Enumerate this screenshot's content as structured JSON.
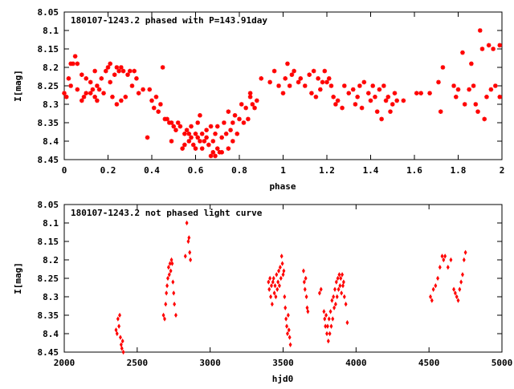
{
  "chart_data": [
    {
      "type": "scatter",
      "title": "180107-1243.2 phased with P=143.91day",
      "xlabel": "phase",
      "ylabel": "I[mag]",
      "xlim": [
        0,
        2
      ],
      "ylim": [
        8.05,
        8.45
      ],
      "y_inverted": true,
      "marker": "star",
      "color": "#ff0000",
      "grid": false,
      "xticks": [
        "0",
        "0.2",
        "0.4",
        "0.6",
        "0.8",
        "1",
        "1.2",
        "1.4",
        "1.6",
        "1.8",
        "2"
      ],
      "yticks": [
        "8.05",
        "8.1",
        "8.15",
        "8.2",
        "8.25",
        "8.3",
        "8.35",
        "8.4",
        "8.45"
      ],
      "points": [
        [
          0.0,
          8.27
        ],
        [
          0.01,
          8.28
        ],
        [
          0.02,
          8.23
        ],
        [
          0.03,
          8.19
        ],
        [
          0.03,
          8.25
        ],
        [
          0.04,
          8.19
        ],
        [
          0.05,
          8.17
        ],
        [
          0.06,
          8.19
        ],
        [
          0.06,
          8.26
        ],
        [
          0.08,
          8.22
        ],
        [
          0.08,
          8.29
        ],
        [
          0.09,
          8.28
        ],
        [
          0.1,
          8.27
        ],
        [
          0.1,
          8.23
        ],
        [
          0.12,
          8.24
        ],
        [
          0.12,
          8.27
        ],
        [
          0.13,
          8.26
        ],
        [
          0.14,
          8.28
        ],
        [
          0.14,
          8.21
        ],
        [
          0.15,
          8.25
        ],
        [
          0.15,
          8.29
        ],
        [
          0.16,
          8.26
        ],
        [
          0.17,
          8.23
        ],
        [
          0.18,
          8.27
        ],
        [
          0.19,
          8.21
        ],
        [
          0.2,
          8.2
        ],
        [
          0.21,
          8.24
        ],
        [
          0.21,
          8.19
        ],
        [
          0.22,
          8.28
        ],
        [
          0.23,
          8.22
        ],
        [
          0.24,
          8.2
        ],
        [
          0.24,
          8.3
        ],
        [
          0.25,
          8.21
        ],
        [
          0.26,
          8.2
        ],
        [
          0.26,
          8.29
        ],
        [
          0.27,
          8.21
        ],
        [
          0.28,
          8.28
        ],
        [
          0.29,
          8.22
        ],
        [
          0.3,
          8.21
        ],
        [
          0.31,
          8.25
        ],
        [
          0.32,
          8.21
        ],
        [
          0.33,
          8.23
        ],
        [
          0.34,
          8.27
        ],
        [
          0.36,
          8.26
        ],
        [
          0.38,
          8.39
        ],
        [
          0.39,
          8.26
        ],
        [
          0.4,
          8.29
        ],
        [
          0.41,
          8.31
        ],
        [
          0.42,
          8.28
        ],
        [
          0.43,
          8.32
        ],
        [
          0.44,
          8.3
        ],
        [
          0.45,
          8.2
        ],
        [
          0.46,
          8.34
        ],
        [
          0.47,
          8.34
        ],
        [
          0.48,
          8.35
        ],
        [
          0.49,
          8.35
        ],
        [
          0.49,
          8.4
        ],
        [
          0.5,
          8.36
        ],
        [
          0.51,
          8.37
        ],
        [
          0.52,
          8.35
        ],
        [
          0.53,
          8.36
        ],
        [
          0.54,
          8.42
        ],
        [
          0.55,
          8.38
        ],
        [
          0.55,
          8.41
        ],
        [
          0.56,
          8.37
        ],
        [
          0.57,
          8.38
        ],
        [
          0.57,
          8.4
        ],
        [
          0.58,
          8.39
        ],
        [
          0.58,
          8.36
        ],
        [
          0.59,
          8.41
        ],
        [
          0.6,
          8.38
        ],
        [
          0.6,
          8.42
        ],
        [
          0.61,
          8.39
        ],
        [
          0.61,
          8.35
        ],
        [
          0.62,
          8.4
        ],
        [
          0.62,
          8.33
        ],
        [
          0.63,
          8.42
        ],
        [
          0.63,
          8.38
        ],
        [
          0.64,
          8.4
        ],
        [
          0.65,
          8.39
        ],
        [
          0.65,
          8.37
        ],
        [
          0.66,
          8.41
        ],
        [
          0.67,
          8.36
        ],
        [
          0.67,
          8.44
        ],
        [
          0.68,
          8.43
        ],
        [
          0.68,
          8.4
        ],
        [
          0.69,
          8.44
        ],
        [
          0.69,
          8.38
        ],
        [
          0.7,
          8.42
        ],
        [
          0.7,
          8.36
        ],
        [
          0.71,
          8.43
        ],
        [
          0.72,
          8.39
        ],
        [
          0.72,
          8.43
        ],
        [
          0.73,
          8.35
        ],
        [
          0.74,
          8.38
        ],
        [
          0.75,
          8.42
        ],
        [
          0.75,
          8.32
        ],
        [
          0.76,
          8.37
        ],
        [
          0.77,
          8.35
        ],
        [
          0.77,
          8.4
        ],
        [
          0.78,
          8.33
        ],
        [
          0.79,
          8.38
        ],
        [
          0.8,
          8.34
        ],
        [
          0.81,
          8.3
        ],
        [
          0.82,
          8.35
        ],
        [
          0.83,
          8.31
        ],
        [
          0.84,
          8.34
        ],
        [
          0.85,
          8.28
        ],
        [
          0.85,
          8.27
        ],
        [
          0.86,
          8.3
        ],
        [
          0.87,
          8.31
        ],
        [
          0.88,
          8.29
        ],
        [
          0.9,
          8.23
        ],
        [
          0.94,
          8.24
        ],
        [
          0.96,
          8.21
        ],
        [
          0.98,
          8.25
        ],
        [
          1.0,
          8.27
        ],
        [
          1.01,
          8.23
        ],
        [
          1.02,
          8.19
        ],
        [
          1.03,
          8.25
        ],
        [
          1.04,
          8.22
        ],
        [
          1.05,
          8.21
        ],
        [
          1.07,
          8.24
        ],
        [
          1.08,
          8.23
        ],
        [
          1.1,
          8.25
        ],
        [
          1.12,
          8.22
        ],
        [
          1.13,
          8.27
        ],
        [
          1.14,
          8.21
        ],
        [
          1.15,
          8.28
        ],
        [
          1.16,
          8.23
        ],
        [
          1.17,
          8.26
        ],
        [
          1.18,
          8.24
        ],
        [
          1.19,
          8.21
        ],
        [
          1.2,
          8.24
        ],
        [
          1.21,
          8.23
        ],
        [
          1.22,
          8.25
        ],
        [
          1.23,
          8.28
        ],
        [
          1.24,
          8.3
        ],
        [
          1.25,
          8.29
        ],
        [
          1.27,
          8.31
        ],
        [
          1.28,
          8.25
        ],
        [
          1.3,
          8.27
        ],
        [
          1.32,
          8.26
        ],
        [
          1.33,
          8.3
        ],
        [
          1.34,
          8.28
        ],
        [
          1.35,
          8.25
        ],
        [
          1.36,
          8.31
        ],
        [
          1.37,
          8.24
        ],
        [
          1.39,
          8.27
        ],
        [
          1.4,
          8.29
        ],
        [
          1.41,
          8.25
        ],
        [
          1.42,
          8.28
        ],
        [
          1.43,
          8.32
        ],
        [
          1.44,
          8.26
        ],
        [
          1.45,
          8.34
        ],
        [
          1.46,
          8.25
        ],
        [
          1.47,
          8.29
        ],
        [
          1.48,
          8.28
        ],
        [
          1.49,
          8.32
        ],
        [
          1.5,
          8.3
        ],
        [
          1.51,
          8.27
        ],
        [
          1.52,
          8.29
        ],
        [
          1.55,
          8.29
        ],
        [
          1.61,
          8.27
        ],
        [
          1.63,
          8.27
        ],
        [
          1.67,
          8.27
        ],
        [
          1.71,
          8.24
        ],
        [
          1.72,
          8.32
        ],
        [
          1.73,
          8.2
        ],
        [
          1.78,
          8.25
        ],
        [
          1.79,
          8.28
        ],
        [
          1.8,
          8.26
        ],
        [
          1.82,
          8.16
        ],
        [
          1.83,
          8.3
        ],
        [
          1.85,
          8.26
        ],
        [
          1.86,
          8.19
        ],
        [
          1.87,
          8.25
        ],
        [
          1.88,
          8.3
        ],
        [
          1.89,
          8.32
        ],
        [
          1.9,
          8.1
        ],
        [
          1.91,
          8.15
        ],
        [
          1.92,
          8.34
        ],
        [
          1.93,
          8.28
        ],
        [
          1.94,
          8.14
        ],
        [
          1.95,
          8.26
        ],
        [
          1.96,
          8.15
        ],
        [
          1.97,
          8.25
        ],
        [
          1.99,
          8.14
        ],
        [
          1.99,
          8.28
        ]
      ]
    },
    {
      "type": "scatter",
      "title": "180107-1243.2 not phased light curve",
      "xlabel": "hjd0",
      "ylabel": "I[mag]",
      "xlim": [
        2000,
        5000
      ],
      "ylim": [
        8.05,
        8.45
      ],
      "y_inverted": true,
      "marker": "diamond",
      "color": "#ff0000",
      "grid": false,
      "xticks": [
        "2000",
        "2500",
        "3000",
        "3500",
        "4000",
        "4500",
        "5000"
      ],
      "yticks": [
        "8.05",
        "8.1",
        "8.15",
        "8.2",
        "8.25",
        "8.3",
        "8.35",
        "8.4",
        "8.45"
      ],
      "points": [
        [
          2355,
          8.39
        ],
        [
          2362,
          8.4
        ],
        [
          2368,
          8.36
        ],
        [
          2375,
          8.38
        ],
        [
          2380,
          8.35
        ],
        [
          2385,
          8.41
        ],
        [
          2390,
          8.43
        ],
        [
          2395,
          8.44
        ],
        [
          2400,
          8.42
        ],
        [
          2405,
          8.45
        ],
        [
          2680,
          8.35
        ],
        [
          2688,
          8.36
        ],
        [
          2695,
          8.32
        ],
        [
          2700,
          8.29
        ],
        [
          2705,
          8.27
        ],
        [
          2710,
          8.25
        ],
        [
          2715,
          8.22
        ],
        [
          2720,
          8.24
        ],
        [
          2725,
          8.21
        ],
        [
          2730,
          8.23
        ],
        [
          2735,
          8.2
        ],
        [
          2740,
          8.21
        ],
        [
          2745,
          8.26
        ],
        [
          2750,
          8.29
        ],
        [
          2755,
          8.32
        ],
        [
          2765,
          8.35
        ],
        [
          2830,
          8.19
        ],
        [
          2840,
          8.1
        ],
        [
          2850,
          8.15
        ],
        [
          2855,
          8.14
        ],
        [
          2860,
          8.18
        ],
        [
          2865,
          8.2
        ],
        [
          3400,
          8.26
        ],
        [
          3405,
          8.28
        ],
        [
          3410,
          8.25
        ],
        [
          3415,
          8.3
        ],
        [
          3420,
          8.27
        ],
        [
          3425,
          8.32
        ],
        [
          3430,
          8.26
        ],
        [
          3435,
          8.25
        ],
        [
          3440,
          8.29
        ],
        [
          3445,
          8.27
        ],
        [
          3450,
          8.3
        ],
        [
          3455,
          8.24
        ],
        [
          3460,
          8.28
        ],
        [
          3465,
          8.26
        ],
        [
          3470,
          8.23
        ],
        [
          3475,
          8.27
        ],
        [
          3480,
          8.22
        ],
        [
          3485,
          8.25
        ],
        [
          3490,
          8.19
        ],
        [
          3495,
          8.21
        ],
        [
          3500,
          8.24
        ],
        [
          3505,
          8.23
        ],
        [
          3510,
          8.3
        ],
        [
          3515,
          8.33
        ],
        [
          3520,
          8.36
        ],
        [
          3525,
          8.38
        ],
        [
          3530,
          8.4
        ],
        [
          3535,
          8.35
        ],
        [
          3540,
          8.39
        ],
        [
          3545,
          8.41
        ],
        [
          3550,
          8.43
        ],
        [
          3640,
          8.23
        ],
        [
          3645,
          8.26
        ],
        [
          3650,
          8.28
        ],
        [
          3655,
          8.25
        ],
        [
          3660,
          8.3
        ],
        [
          3665,
          8.33
        ],
        [
          3670,
          8.34
        ],
        [
          3750,
          8.29
        ],
        [
          3760,
          8.28
        ],
        [
          3780,
          8.34
        ],
        [
          3785,
          8.36
        ],
        [
          3790,
          8.38
        ],
        [
          3795,
          8.35
        ],
        [
          3800,
          8.4
        ],
        [
          3805,
          8.38
        ],
        [
          3810,
          8.42
        ],
        [
          3815,
          8.36
        ],
        [
          3820,
          8.4
        ],
        [
          3825,
          8.34
        ],
        [
          3830,
          8.38
        ],
        [
          3835,
          8.31
        ],
        [
          3840,
          8.36
        ],
        [
          3845,
          8.3
        ],
        [
          3850,
          8.33
        ],
        [
          3855,
          8.28
        ],
        [
          3860,
          8.32
        ],
        [
          3865,
          8.26
        ],
        [
          3870,
          8.3
        ],
        [
          3875,
          8.25
        ],
        [
          3880,
          8.28
        ],
        [
          3885,
          8.24
        ],
        [
          3890,
          8.27
        ],
        [
          3895,
          8.25
        ],
        [
          3900,
          8.29
        ],
        [
          3905,
          8.24
        ],
        [
          3910,
          8.27
        ],
        [
          3915,
          8.26
        ],
        [
          3920,
          8.3
        ],
        [
          3930,
          8.32
        ],
        [
          3940,
          8.37
        ],
        [
          4510,
          8.3
        ],
        [
          4520,
          8.31
        ],
        [
          4530,
          8.28
        ],
        [
          4545,
          8.27
        ],
        [
          4560,
          8.25
        ],
        [
          4575,
          8.22
        ],
        [
          4590,
          8.19
        ],
        [
          4600,
          8.2
        ],
        [
          4610,
          8.19
        ],
        [
          4630,
          8.22
        ],
        [
          4650,
          8.2
        ],
        [
          4670,
          8.28
        ],
        [
          4680,
          8.29
        ],
        [
          4690,
          8.3
        ],
        [
          4700,
          8.31
        ],
        [
          4710,
          8.28
        ],
        [
          4720,
          8.26
        ],
        [
          4730,
          8.24
        ],
        [
          4740,
          8.2
        ],
        [
          4750,
          8.18
        ]
      ]
    }
  ]
}
